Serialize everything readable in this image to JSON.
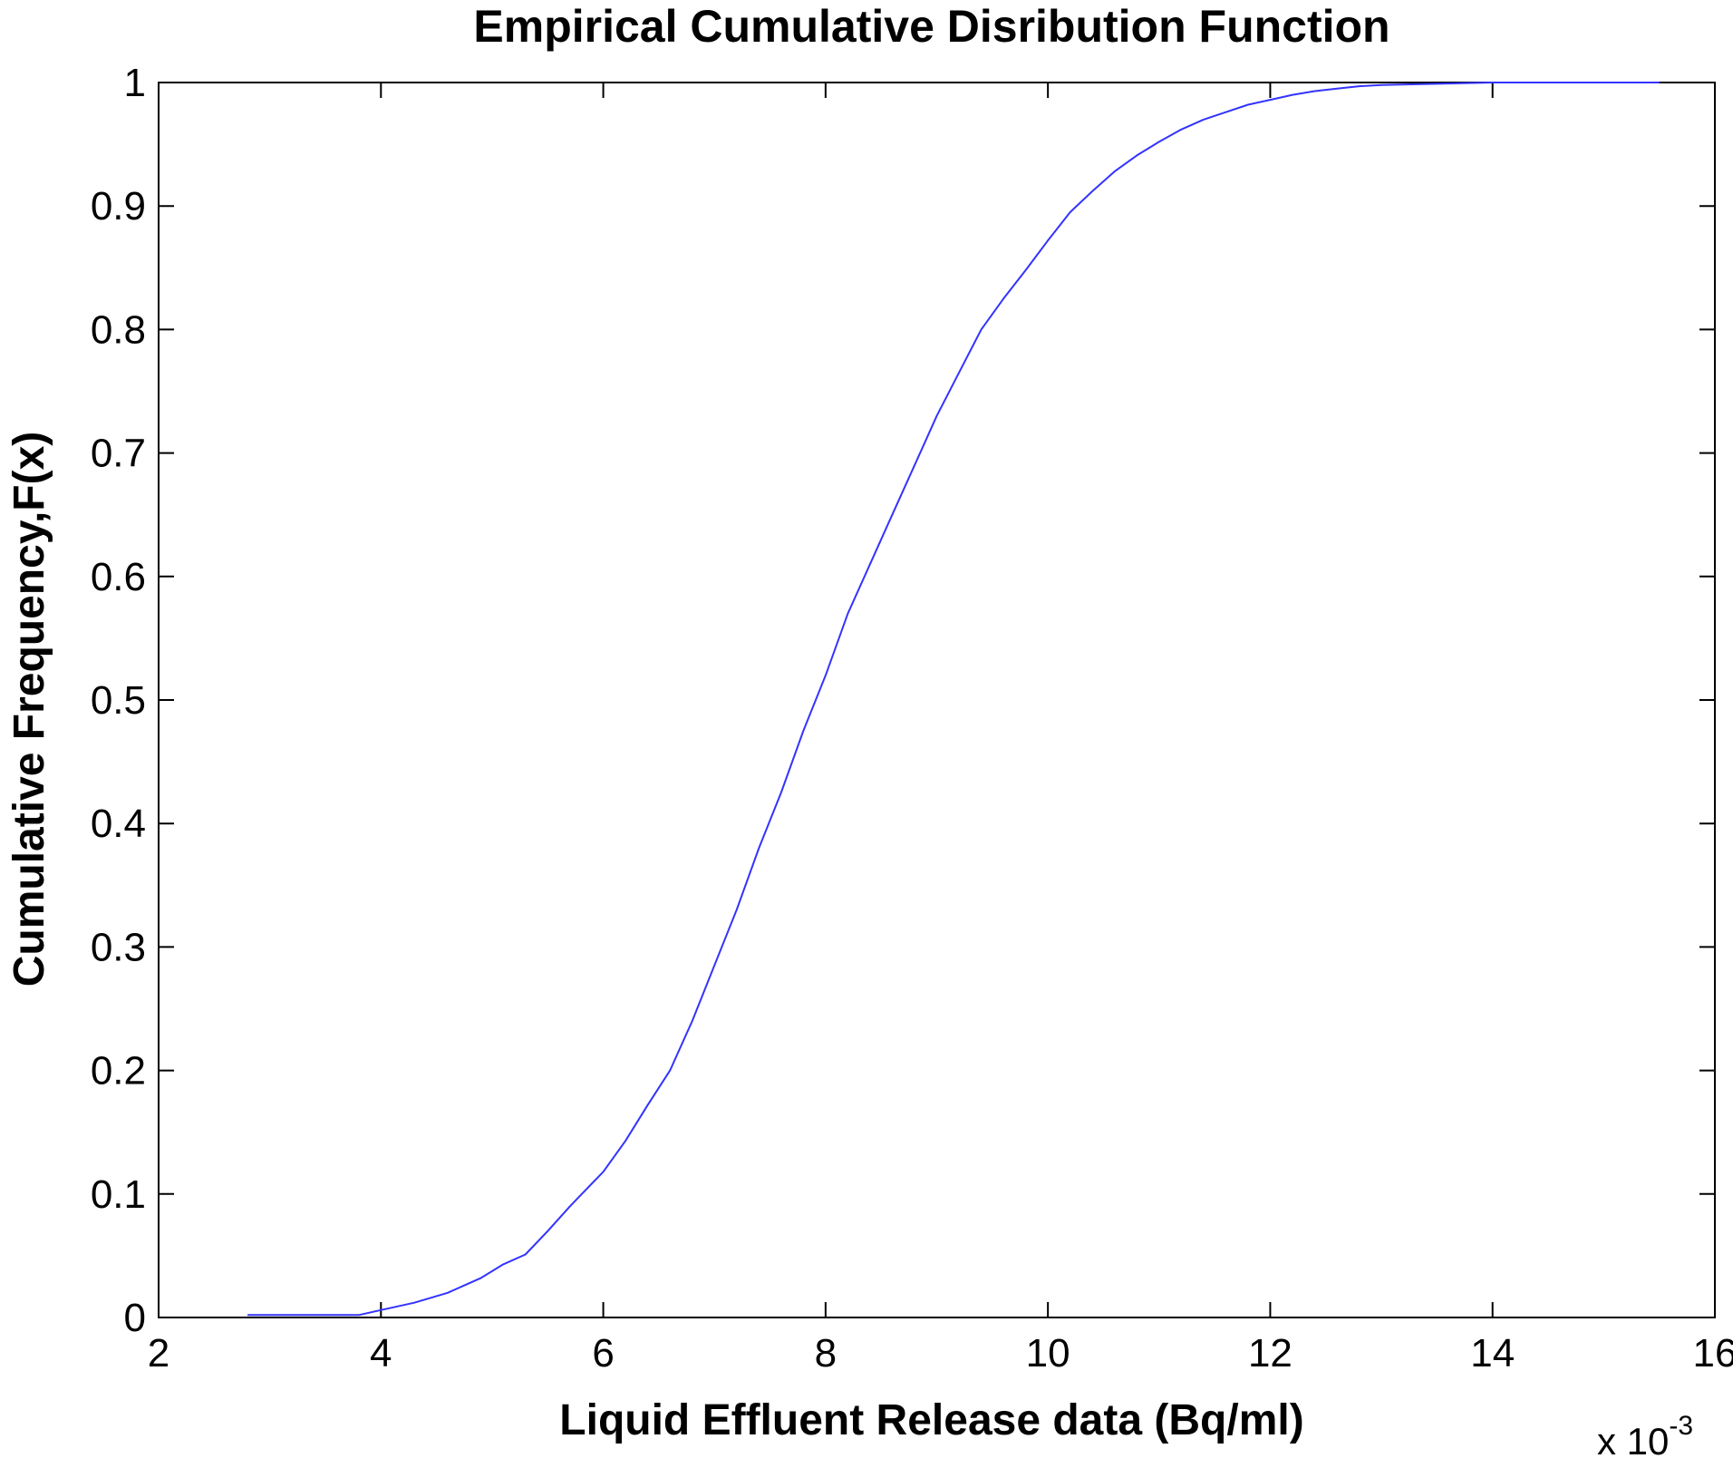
{
  "chart_data": {
    "type": "line",
    "title": "Empirical Cumulative Disribution Function",
    "xlabel": "Liquid Effluent Release data (Bq/ml)",
    "ylabel": "Cumulative Frequency,F(x)",
    "x_multiplier_base": "x 10",
    "x_multiplier_exponent": "-3",
    "xlim": [
      2,
      16
    ],
    "ylim": [
      0,
      1
    ],
    "xticks": [
      2,
      4,
      6,
      8,
      10,
      12,
      14,
      16
    ],
    "yticks": [
      0,
      0.1,
      0.2,
      0.3,
      0.4,
      0.5,
      0.6,
      0.7,
      0.8,
      0.9,
      1
    ],
    "grid": false,
    "line_color": "#3333ff",
    "series": [
      {
        "x": [
          2.8,
          3.8,
          4.0,
          4.3,
          4.6,
          4.9,
          5.1,
          5.3,
          5.5,
          5.7,
          6.0,
          6.2,
          6.4,
          6.6,
          6.8,
          7.0,
          7.2,
          7.4,
          7.6,
          7.8,
          8.0,
          8.2,
          8.4,
          8.6,
          8.8,
          9.0,
          9.2,
          9.4,
          9.6,
          9.8,
          10.0,
          10.2,
          10.4,
          10.6,
          10.8,
          11.0,
          11.2,
          11.4,
          11.6,
          11.8,
          12.0,
          12.2,
          12.4,
          12.6,
          12.8,
          13.0,
          13.5,
          14.0,
          15.5
        ],
        "y": [
          0.002,
          0.002,
          0.006,
          0.012,
          0.02,
          0.032,
          0.043,
          0.051,
          0.07,
          0.09,
          0.118,
          0.143,
          0.172,
          0.2,
          0.24,
          0.285,
          0.33,
          0.38,
          0.425,
          0.475,
          0.52,
          0.57,
          0.61,
          0.65,
          0.69,
          0.73,
          0.765,
          0.8,
          0.825,
          0.848,
          0.872,
          0.895,
          0.912,
          0.928,
          0.941,
          0.952,
          0.962,
          0.97,
          0.976,
          0.982,
          0.986,
          0.99,
          0.993,
          0.995,
          0.997,
          0.998,
          0.999,
          1.0,
          1.0
        ]
      }
    ]
  }
}
